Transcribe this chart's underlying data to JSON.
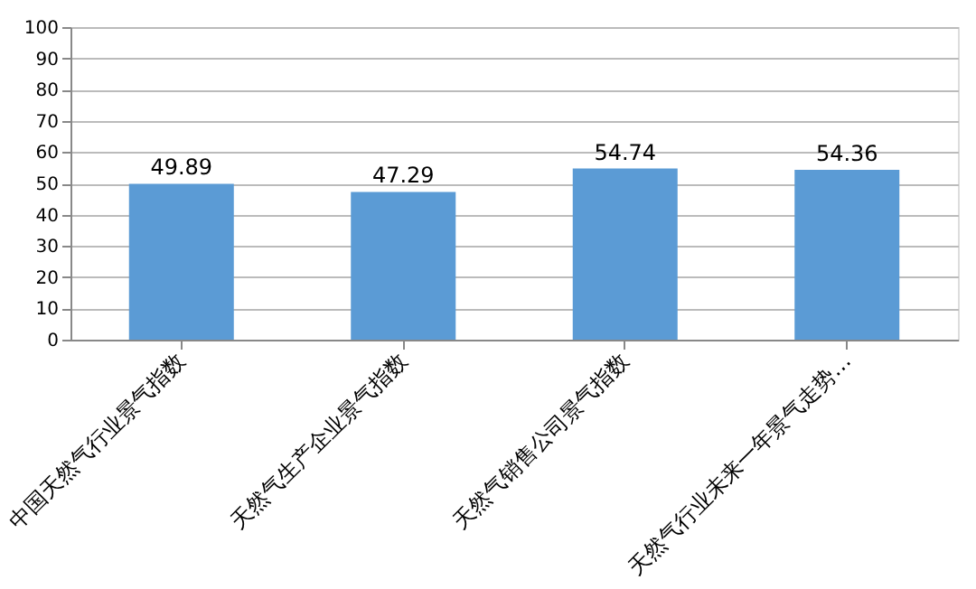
{
  "chart_data": {
    "type": "bar",
    "categories": [
      "中国天然气行业景气指数",
      "天然气生产企业景气指数",
      "天然气销售公司景气指数",
      "天然气行业未来一年景气走势…"
    ],
    "values": [
      49.89,
      47.29,
      54.74,
      54.36
    ],
    "color": "#5b9bd5",
    "ylim": [
      0,
      100
    ],
    "yticks": [
      0,
      10,
      20,
      30,
      40,
      50,
      60,
      70,
      80,
      90,
      100
    ],
    "grid": "y",
    "data_labels": true
  }
}
